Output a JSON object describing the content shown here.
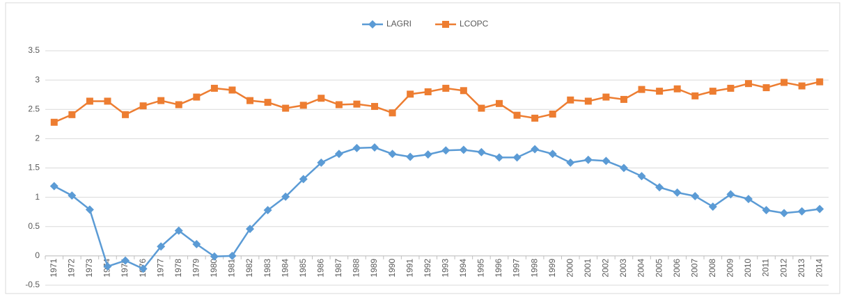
{
  "chart_data": {
    "type": "line",
    "categories": [
      "1971",
      "1972",
      "1973",
      "1974",
      "1975",
      "1976",
      "1977",
      "1978",
      "1979",
      "1980",
      "1981",
      "1982",
      "1983",
      "1984",
      "1985",
      "1986",
      "1987",
      "1988",
      "1989",
      "1990",
      "1991",
      "1992",
      "1993",
      "1994",
      "1995",
      "1996",
      "1997",
      "1998",
      "1999",
      "2000",
      "2001",
      "2002",
      "2003",
      "2004",
      "2005",
      "2006",
      "2007",
      "2008",
      "2009",
      "2010",
      "2011",
      "2012",
      "2013",
      "2014"
    ],
    "series": [
      {
        "name": "LAGRI",
        "color": "#5b9bd5",
        "marker": "diamond",
        "values": [
          1.19,
          1.03,
          0.79,
          -0.18,
          -0.08,
          -0.22,
          0.16,
          0.43,
          0.2,
          -0.01,
          0.0,
          0.46,
          0.78,
          1.01,
          1.31,
          1.59,
          1.74,
          1.84,
          1.85,
          1.74,
          1.69,
          1.73,
          1.8,
          1.81,
          1.77,
          1.68,
          1.68,
          1.82,
          1.74,
          1.59,
          1.64,
          1.62,
          1.5,
          1.36,
          1.17,
          1.08,
          1.02,
          0.84,
          1.05,
          0.97,
          0.78,
          0.73,
          0.76,
          0.8
        ]
      },
      {
        "name": "LCOPC",
        "color": "#ed7d31",
        "marker": "square",
        "values": [
          2.28,
          2.41,
          2.64,
          2.64,
          2.41,
          2.56,
          2.65,
          2.58,
          2.71,
          2.86,
          2.83,
          2.65,
          2.62,
          2.52,
          2.57,
          2.69,
          2.58,
          2.59,
          2.55,
          2.44,
          2.76,
          2.8,
          2.86,
          2.82,
          2.52,
          2.6,
          2.4,
          2.35,
          2.42,
          2.66,
          2.64,
          2.71,
          2.67,
          2.84,
          2.81,
          2.85,
          2.73,
          2.81,
          2.86,
          2.94,
          2.87,
          2.96,
          2.9,
          2.97
        ]
      }
    ],
    "ylim": [
      -0.5,
      3.5
    ],
    "yticks": [
      -0.5,
      0,
      0.5,
      1,
      1.5,
      2,
      2.5,
      3,
      3.5
    ],
    "grid": true,
    "legend": "top"
  }
}
